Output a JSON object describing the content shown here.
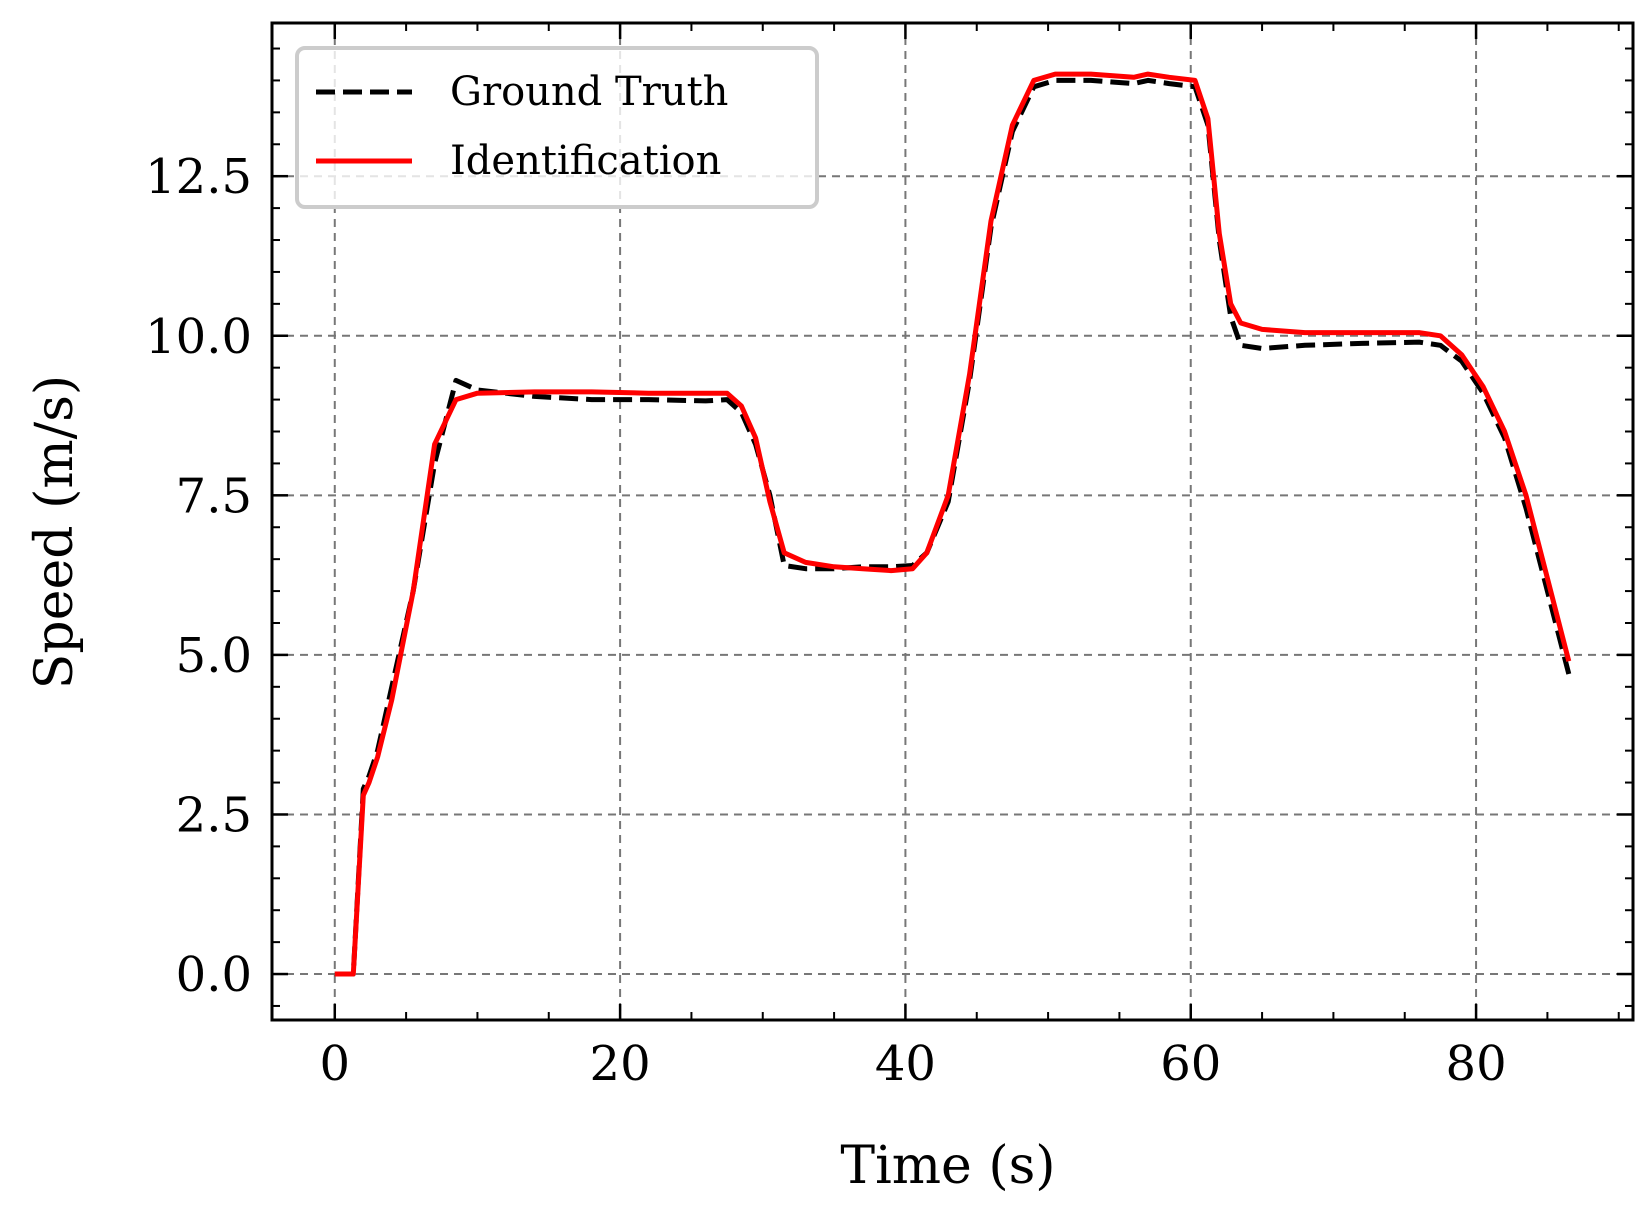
{
  "chart_data": {
    "type": "line",
    "title": "",
    "xlabel": "Time (s)",
    "ylabel": "Speed (m/s)",
    "xlim": [
      -4.4,
      91
    ],
    "ylim": [
      -0.72,
      14.9
    ],
    "xticks": [
      0,
      20,
      40,
      60,
      80
    ],
    "xtick_labels": [
      "0",
      "20",
      "40",
      "60",
      "80"
    ],
    "yticks": [
      0,
      2.5,
      5,
      7.5,
      10,
      12.5
    ],
    "ytick_labels": [
      "0.0",
      "2.5",
      "5.0",
      "7.5",
      "10.0",
      "12.5"
    ],
    "grid": true,
    "legend_position": "top-left",
    "series": [
      {
        "name": "Ground Truth",
        "style": "dashed",
        "color": "#000000",
        "x": [
          0,
          1.3,
          2.0,
          2.4,
          3.0,
          4.0,
          5.5,
          7.0,
          8.5,
          10,
          14,
          18,
          22,
          26,
          27.5,
          28.5,
          29.5,
          30.5,
          31.5,
          33,
          35,
          37,
          39,
          40.5,
          41.5,
          43,
          44.5,
          46,
          47.5,
          49,
          50.5,
          53,
          56,
          57,
          58.5,
          60.3,
          61.2,
          62.0,
          62.8,
          63.5,
          65,
          68,
          72,
          76,
          77.5,
          79,
          80.5,
          82,
          83.5,
          85,
          86.5
        ],
        "y": [
          0,
          0,
          2.9,
          3.1,
          3.5,
          4.5,
          6.0,
          8.0,
          9.3,
          9.15,
          9.05,
          9.0,
          9.0,
          8.98,
          9.0,
          8.8,
          8.3,
          7.5,
          6.4,
          6.35,
          6.35,
          6.38,
          6.38,
          6.4,
          6.6,
          7.4,
          9.3,
          11.7,
          13.2,
          13.9,
          14.0,
          14.0,
          13.95,
          14.0,
          13.95,
          13.9,
          13.3,
          11.5,
          10.3,
          9.85,
          9.8,
          9.85,
          9.88,
          9.9,
          9.85,
          9.6,
          9.1,
          8.4,
          7.3,
          6.0,
          4.7
        ]
      },
      {
        "name": "Identification",
        "style": "solid",
        "color": "#ff0000",
        "x": [
          0,
          1.3,
          2.0,
          2.4,
          3.0,
          4.0,
          5.5,
          7.0,
          8.5,
          10,
          14,
          18,
          22,
          26,
          27.5,
          28.5,
          29.5,
          30.5,
          31.5,
          33,
          35,
          37,
          39,
          40.5,
          41.5,
          43,
          44.5,
          46,
          47.5,
          49,
          50.5,
          53,
          56,
          57,
          58.5,
          60.3,
          61.2,
          62.0,
          62.8,
          63.5,
          65,
          68,
          72,
          76,
          77.5,
          79,
          80.5,
          82,
          83.5,
          85,
          86.5
        ],
        "y": [
          0,
          0,
          2.8,
          3.0,
          3.4,
          4.3,
          6.0,
          8.3,
          9.0,
          9.1,
          9.12,
          9.12,
          9.1,
          9.1,
          9.1,
          8.9,
          8.4,
          7.4,
          6.6,
          6.45,
          6.38,
          6.35,
          6.32,
          6.35,
          6.6,
          7.5,
          9.4,
          11.8,
          13.3,
          14.0,
          14.1,
          14.1,
          14.05,
          14.1,
          14.05,
          14.0,
          13.4,
          11.6,
          10.5,
          10.2,
          10.1,
          10.05,
          10.05,
          10.05,
          10.0,
          9.7,
          9.2,
          8.5,
          7.5,
          6.2,
          4.9
        ]
      }
    ]
  }
}
